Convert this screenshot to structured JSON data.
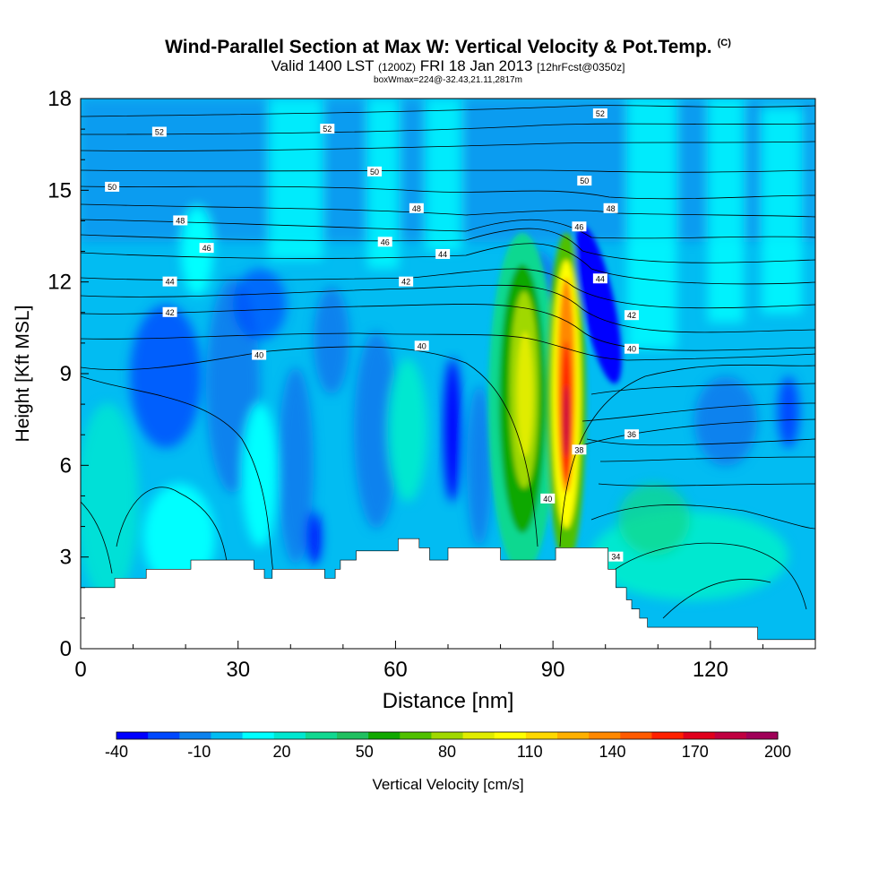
{
  "title": {
    "main": "Wind-Parallel Section at Max W: Vertical Velocity & Pot.Temp.",
    "copyright": "(C)",
    "valid_prefix": "Valid 1400 LST",
    "valid_utc": "(1200Z)",
    "valid_date": "FRI 18 Jan 2013",
    "forecast": "[12hrFcst@0350z]",
    "box_info": "boxWmax=224@-32.43,21.11,2817m"
  },
  "chart_data": {
    "type": "heatmap",
    "xlabel": "Distance [nm]",
    "ylabel": "Height [Kft MSL]",
    "xlim": [
      0,
      140
    ],
    "ylim": [
      0,
      18
    ],
    "x_ticks": [
      0,
      30,
      60,
      90,
      120
    ],
    "y_ticks": [
      0,
      3,
      6,
      9,
      12,
      15,
      18
    ],
    "colorbar": {
      "label": "Vertical Velocity [cm/s]",
      "tick_values": [
        -40,
        -10,
        20,
        50,
        80,
        110,
        140,
        170,
        200
      ],
      "colors": [
        "#0000ff",
        "#0048ff",
        "#0c82ee",
        "#02bcf2",
        "#00ffff",
        "#00e8d0",
        "#10d890",
        "#20c060",
        "#10a800",
        "#50c000",
        "#a0d800",
        "#e0ec00",
        "#ffff00",
        "#ffd800",
        "#ffb000",
        "#ff8800",
        "#ff5a00",
        "#ff2000",
        "#e0001c",
        "#c00040",
        "#a00058"
      ]
    },
    "theta_contours": {
      "units": "K",
      "labels": [
        {
          "value": 52,
          "x": 15,
          "y": 16.9
        },
        {
          "value": 52,
          "x": 47,
          "y": 17.0
        },
        {
          "value": 52,
          "x": 99,
          "y": 17.5
        },
        {
          "value": 50,
          "x": 6,
          "y": 15.1
        },
        {
          "value": 50,
          "x": 56,
          "y": 15.6
        },
        {
          "value": 50,
          "x": 96,
          "y": 15.3
        },
        {
          "value": 48,
          "x": 19,
          "y": 14.0
        },
        {
          "value": 48,
          "x": 64,
          "y": 14.4
        },
        {
          "value": 48,
          "x": 101,
          "y": 14.4
        },
        {
          "value": 46,
          "x": 24,
          "y": 13.1
        },
        {
          "value": 46,
          "x": 58,
          "y": 13.3
        },
        {
          "value": 46,
          "x": 95,
          "y": 13.8
        },
        {
          "value": 44,
          "x": 17,
          "y": 12.0
        },
        {
          "value": 44,
          "x": 69,
          "y": 12.9
        },
        {
          "value": 44,
          "x": 99,
          "y": 12.1
        },
        {
          "value": 42,
          "x": 17,
          "y": 11.0
        },
        {
          "value": 42,
          "x": 62,
          "y": 12.0
        },
        {
          "value": 42,
          "x": 105,
          "y": 10.9
        },
        {
          "value": 40,
          "x": 34,
          "y": 9.6
        },
        {
          "value": 40,
          "x": 65,
          "y": 9.9
        },
        {
          "value": 40,
          "x": 105,
          "y": 9.8
        },
        {
          "value": 40,
          "x": 89,
          "y": 4.9
        },
        {
          "value": 38,
          "x": 95,
          "y": 6.5
        },
        {
          "value": 36,
          "x": 105,
          "y": 7.0
        },
        {
          "value": 34,
          "x": 102,
          "y": 3.0
        }
      ]
    },
    "updraft_cores": [
      {
        "x": 85,
        "y_bottom": 2.9,
        "y_top": 12.6,
        "peak_w": 100
      },
      {
        "x": 92.5,
        "y_bottom": 3.0,
        "y_top": 12.3,
        "peak_w": 180
      }
    ],
    "downdraft_max": {
      "x": 99,
      "y": 11.5,
      "min_w": -40
    },
    "terrain_profile": {
      "x": [
        0,
        6.5,
        6.5,
        8.5,
        8.5,
        12.5,
        12.5,
        21,
        21,
        33,
        33,
        35,
        35,
        36.5,
        36.5,
        46.5,
        46.5,
        48.5,
        48.5,
        49.5,
        49.5,
        52.5,
        52.5,
        56,
        56,
        60.5,
        60.5,
        64.5,
        64.5,
        66.5,
        66.5,
        70,
        70,
        72.5,
        72.5,
        74.5,
        74.5,
        80,
        80,
        86,
        86,
        90.5,
        90.5,
        98,
        98,
        100.5,
        100.5,
        102,
        102,
        104,
        104,
        105,
        105,
        106.5,
        106.5,
        108,
        108,
        110,
        110,
        113,
        113,
        129,
        129,
        131,
        131,
        140
      ],
      "h_kft": [
        2.0,
        2.0,
        2.3,
        2.3,
        2.3,
        2.3,
        2.6,
        2.6,
        2.9,
        2.9,
        2.6,
        2.6,
        2.3,
        2.3,
        2.6,
        2.6,
        2.3,
        2.3,
        2.6,
        2.6,
        2.9,
        2.9,
        3.2,
        3.2,
        3.2,
        3.2,
        3.6,
        3.6,
        3.3,
        3.3,
        2.9,
        2.9,
        3.3,
        3.3,
        3.3,
        3.3,
        3.3,
        3.3,
        2.9,
        2.9,
        2.9,
        2.9,
        3.3,
        3.3,
        3.3,
        3.3,
        2.6,
        2.6,
        2.0,
        2.0,
        1.6,
        1.6,
        1.3,
        1.3,
        1.0,
        1.0,
        0.7,
        0.7,
        0.7,
        0.7,
        0.7,
        0.7,
        0.3,
        0.3,
        0.3,
        0.3
      ]
    }
  }
}
